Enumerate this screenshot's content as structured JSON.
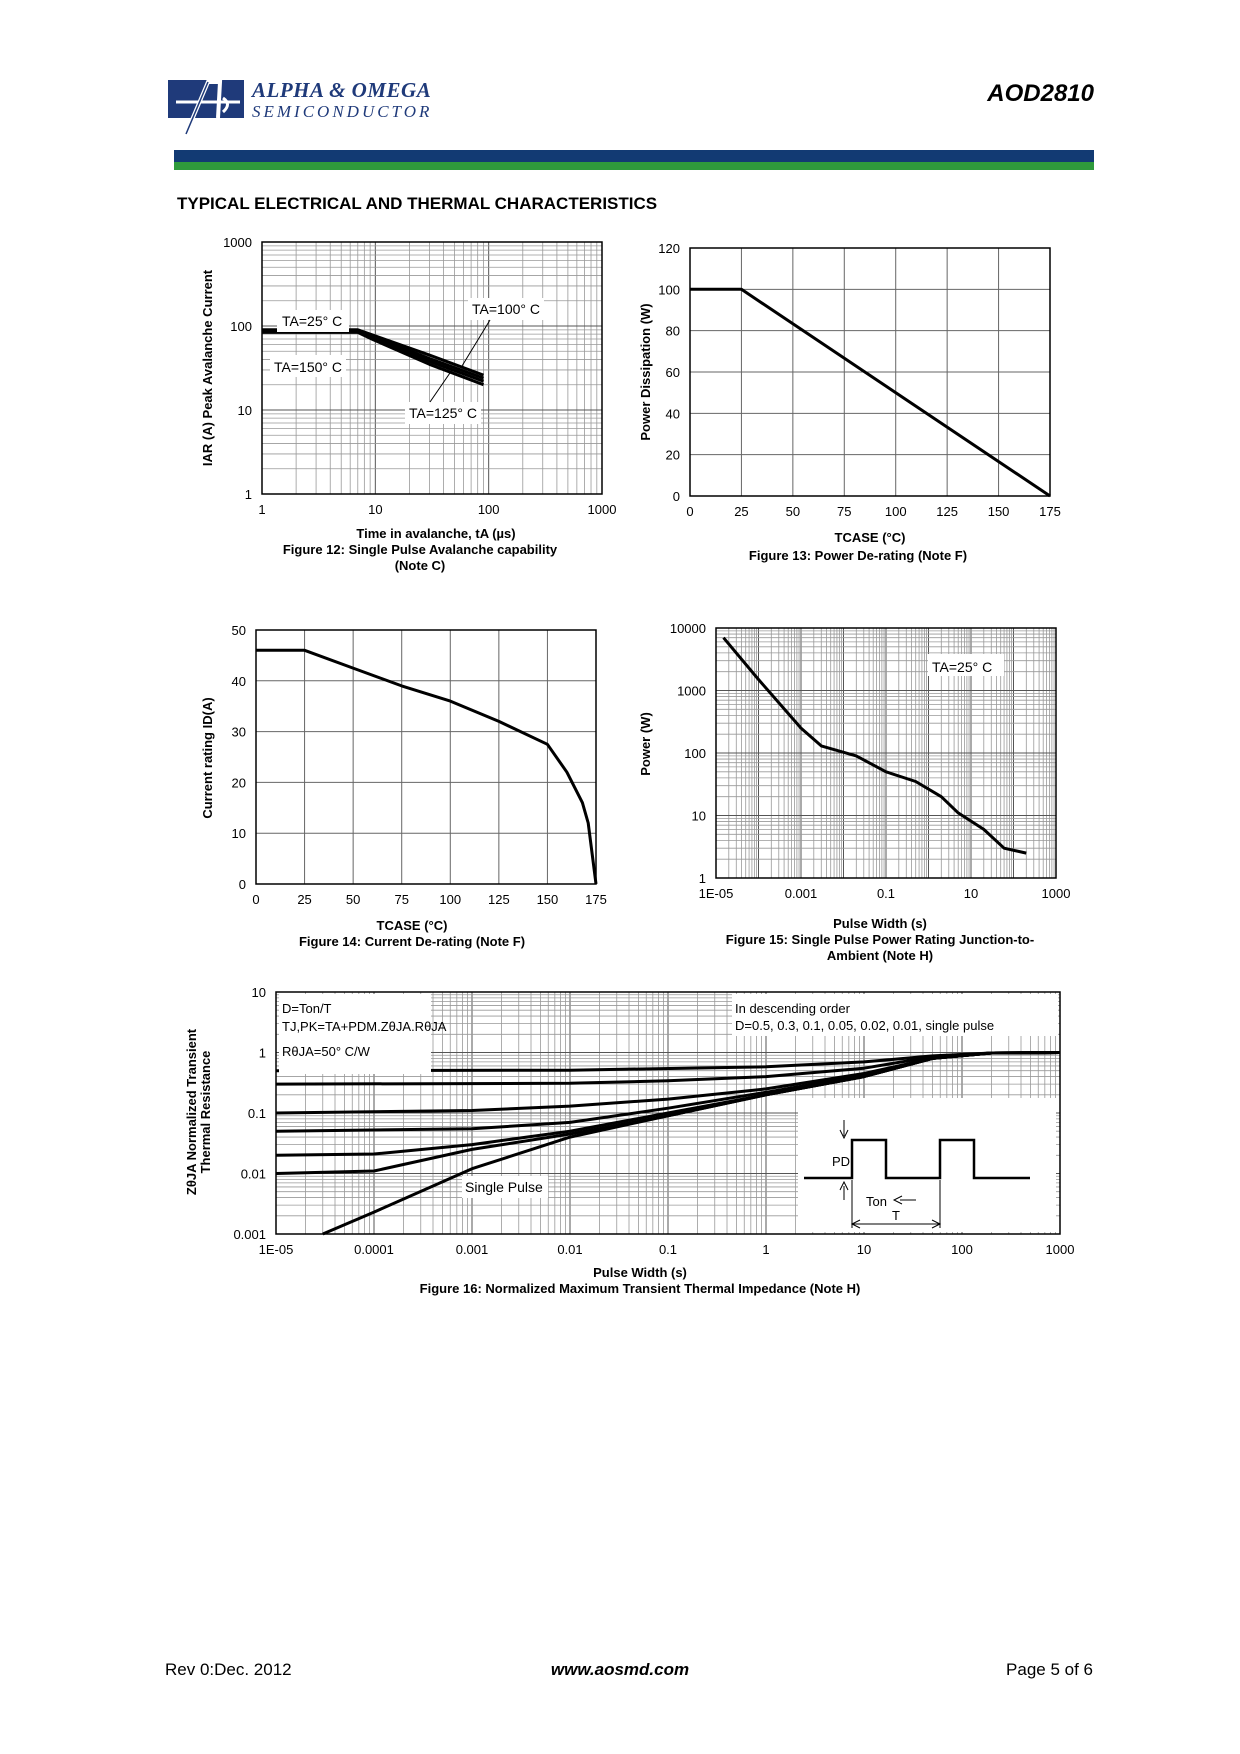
{
  "header": {
    "company_line1": "ALPHA & OMEGA",
    "company_line2": "SEMICONDUCTOR",
    "part_number": "AOD2810",
    "colors": {
      "band_blue": "#123a73",
      "band_green": "#2f9a3c",
      "logo_blue": "#1f3a7a"
    }
  },
  "section_title": "TYPICAL ELECTRICAL AND THERMAL CHARACTERISTICS",
  "chart_data": [
    {
      "id": "fig12",
      "type": "line",
      "scale": "log-log",
      "caption_line1": "Figure 12: Single Pulse Avalanche capability",
      "caption_line2": "(Note C)",
      "xlabel": "Time in avalanche, tA (µs)",
      "ylabel": "IAR (A) Peak Avalanche Current",
      "xlim": [
        1,
        1000
      ],
      "ylim": [
        1,
        1000
      ],
      "x_ticks": [
        "1",
        "10",
        "100",
        "1000"
      ],
      "y_ticks": [
        "1",
        "10",
        "100",
        "1000"
      ],
      "series": [
        {
          "name": "TA=25° C",
          "points": [
            [
              1,
              90
            ],
            [
              7,
              90
            ],
            [
              9.5,
              78
            ],
            [
              30,
              45
            ],
            [
              90,
              26
            ]
          ]
        },
        {
          "name": "TA=100° C",
          "points": [
            [
              1,
              88
            ],
            [
              7,
              88
            ],
            [
              9.5,
              75
            ],
            [
              30,
              41
            ],
            [
              90,
              24
            ]
          ]
        },
        {
          "name": "TA=125° C",
          "points": [
            [
              1,
              86
            ],
            [
              7,
              86
            ],
            [
              9.5,
              72
            ],
            [
              30,
              38
            ],
            [
              90,
              22
            ]
          ]
        },
        {
          "name": "TA=150° C",
          "points": [
            [
              1,
              84
            ],
            [
              7,
              84
            ],
            [
              9.5,
              69
            ],
            [
              30,
              35
            ],
            [
              90,
              20
            ]
          ]
        }
      ],
      "annotations": [
        "TA=25° C",
        "TA=100° C",
        "TA=150° C",
        "TA=125° C"
      ]
    },
    {
      "id": "fig13",
      "type": "line",
      "caption": "Figure 13: Power De-rating (Note F)",
      "xlabel": "TCASE (°C)",
      "ylabel": "Power Dissipation (W)",
      "xlim": [
        0,
        175
      ],
      "ylim": [
        0,
        120
      ],
      "x_ticks": [
        "0",
        "25",
        "50",
        "75",
        "100",
        "125",
        "150",
        "175"
      ],
      "y_ticks": [
        "0",
        "20",
        "40",
        "60",
        "80",
        "100",
        "120"
      ],
      "series": [
        {
          "name": "Power",
          "points": [
            [
              0,
              100
            ],
            [
              25,
              100
            ],
            [
              175,
              0
            ]
          ]
        }
      ]
    },
    {
      "id": "fig14",
      "type": "line",
      "caption": "Figure 14: Current De-rating (Note F)",
      "xlabel": "TCASE (°C)",
      "ylabel": "Current rating ID(A)",
      "xlim": [
        0,
        175
      ],
      "ylim": [
        0,
        50
      ],
      "x_ticks": [
        "0",
        "25",
        "50",
        "75",
        "100",
        "125",
        "150",
        "175"
      ],
      "y_ticks": [
        "0",
        "10",
        "20",
        "30",
        "40",
        "50"
      ],
      "series": [
        {
          "name": "Current",
          "points": [
            [
              0,
              46
            ],
            [
              25,
              46
            ],
            [
              50,
              42.5
            ],
            [
              75,
              39
            ],
            [
              100,
              36
            ],
            [
              125,
              32
            ],
            [
              150,
              27.5
            ],
            [
              160,
              22
            ],
            [
              168,
              16
            ],
            [
              171,
              12
            ],
            [
              175,
              0
            ]
          ]
        }
      ]
    },
    {
      "id": "fig15",
      "type": "line",
      "scale": "log-log",
      "caption_line1": "Figure 15: Single Pulse Power Rating Junction-to-",
      "caption_line2": "Ambient (Note H)",
      "xlabel": "Pulse Width (s)",
      "ylabel": "Power (W)",
      "xlim": [
        1e-05,
        1000
      ],
      "ylim": [
        1,
        10000
      ],
      "x_ticks": [
        "1E-05",
        "0.001",
        "0.1",
        "10",
        "1000"
      ],
      "y_ticks": [
        "1",
        "10",
        "100",
        "1000",
        "10000"
      ],
      "series": [
        {
          "name": "TA=25° C",
          "points": [
            [
              1.5e-05,
              7000
            ],
            [
              0.0001,
              1500
            ],
            [
              0.001,
              250
            ],
            [
              0.003,
              130
            ],
            [
              0.02,
              90
            ],
            [
              0.1,
              50
            ],
            [
              0.5,
              35
            ],
            [
              2,
              20
            ],
            [
              5,
              11
            ],
            [
              20,
              6
            ],
            [
              60,
              3
            ],
            [
              200,
              2.5
            ]
          ]
        }
      ],
      "annotations": [
        "TA=25° C"
      ]
    },
    {
      "id": "fig16",
      "type": "line",
      "scale": "log-log",
      "caption": "Figure 16: Normalized Maximum Transient Thermal Impedance (Note H)",
      "xlabel": "Pulse Width (s)",
      "ylabel_line1": "ZθJA Normalized Transient",
      "ylabel_line2": "Thermal Resistance",
      "xlim": [
        1e-05,
        1000
      ],
      "ylim": [
        0.001,
        10
      ],
      "x_ticks": [
        "1E-05",
        "0.0001",
        "0.001",
        "0.01",
        "0.1",
        "1",
        "10",
        "100",
        "1000"
      ],
      "y_ticks": [
        "0.001",
        "0.01",
        "0.1",
        "1",
        "10"
      ],
      "series": [
        {
          "name": "D=0.5",
          "points": [
            [
              1e-05,
              0.5
            ],
            [
              0.01,
              0.51
            ],
            [
              1,
              0.58
            ],
            [
              10,
              0.7
            ],
            [
              50,
              0.88
            ],
            [
              200,
              0.98
            ],
            [
              1000,
              1.0
            ]
          ]
        },
        {
          "name": "D=0.3",
          "points": [
            [
              1e-05,
              0.3
            ],
            [
              0.01,
              0.31
            ],
            [
              0.1,
              0.34
            ],
            [
              1,
              0.4
            ],
            [
              10,
              0.55
            ],
            [
              50,
              0.85
            ],
            [
              200,
              0.98
            ],
            [
              1000,
              1.0
            ]
          ]
        },
        {
          "name": "D=0.1",
          "points": [
            [
              1e-05,
              0.1
            ],
            [
              0.001,
              0.11
            ],
            [
              0.01,
              0.13
            ],
            [
              0.1,
              0.17
            ],
            [
              1,
              0.25
            ],
            [
              10,
              0.45
            ],
            [
              50,
              0.8
            ],
            [
              200,
              0.98
            ],
            [
              1000,
              1.0
            ]
          ]
        },
        {
          "name": "D=0.05",
          "points": [
            [
              1e-05,
              0.05
            ],
            [
              0.001,
              0.055
            ],
            [
              0.01,
              0.07
            ],
            [
              0.1,
              0.12
            ],
            [
              1,
              0.22
            ],
            [
              10,
              0.42
            ],
            [
              50,
              0.8
            ],
            [
              200,
              0.98
            ],
            [
              1000,
              1.0
            ]
          ]
        },
        {
          "name": "D=0.02",
          "points": [
            [
              1e-05,
              0.02
            ],
            [
              0.0001,
              0.021
            ],
            [
              0.001,
              0.03
            ],
            [
              0.01,
              0.05
            ],
            [
              0.1,
              0.1
            ],
            [
              1,
              0.2
            ],
            [
              10,
              0.4
            ],
            [
              50,
              0.8
            ],
            [
              200,
              0.98
            ],
            [
              1000,
              1.0
            ]
          ]
        },
        {
          "name": "D=0.01",
          "points": [
            [
              1e-05,
              0.01
            ],
            [
              0.0001,
              0.011
            ],
            [
              0.001,
              0.025
            ],
            [
              0.01,
              0.045
            ],
            [
              0.1,
              0.09
            ],
            [
              1,
              0.2
            ],
            [
              10,
              0.4
            ],
            [
              50,
              0.8
            ],
            [
              200,
              0.98
            ],
            [
              1000,
              1.0
            ]
          ]
        },
        {
          "name": "single pulse",
          "points": [
            [
              3e-05,
              0.001
            ],
            [
              0.0001,
              0.0023
            ],
            [
              0.001,
              0.012
            ],
            [
              0.01,
              0.04
            ],
            [
              0.1,
              0.09
            ],
            [
              1,
              0.2
            ],
            [
              10,
              0.4
            ],
            [
              50,
              0.8
            ],
            [
              200,
              0.98
            ],
            [
              1000,
              1.0
            ]
          ]
        }
      ],
      "annotations": {
        "box_left": [
          "D=Ton/T",
          "TJ,PK=TA+PDM.ZθJA.RθJA",
          "RθJA=50° C/W"
        ],
        "box_right": [
          "In descending order",
          "D=0.5, 0.3, 0.1, 0.05, 0.02, 0.01, single pulse"
        ],
        "single_pulse_label": "Single Pulse",
        "pulse_diagram": {
          "pd": "PD",
          "ton": "Ton",
          "t": "T"
        }
      }
    }
  ],
  "footer": {
    "revision": "Rev 0:Dec. 2012",
    "website": "www.aosmd.com",
    "page": "Page 5 of 6"
  }
}
